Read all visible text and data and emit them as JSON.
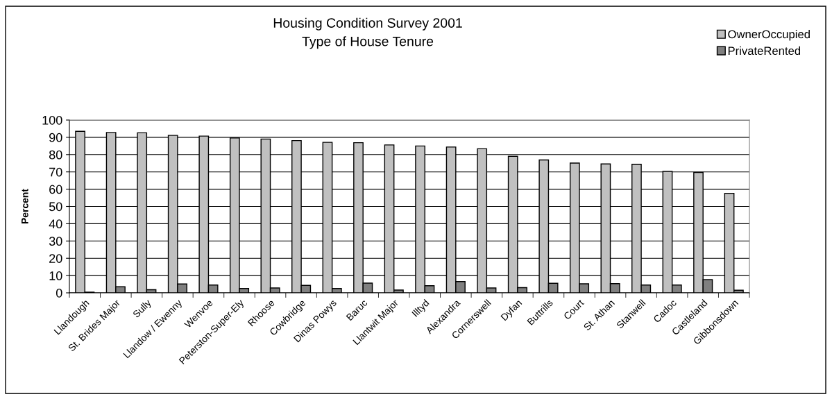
{
  "chart_data": {
    "type": "bar",
    "title": "Housing Condition Survey 2001\nType of House Tenure",
    "ylabel": "Percent",
    "categories": [
      "Llandough",
      "St. Brides Major",
      "Sully",
      "Llandow / Ewenny",
      "Wenvoe",
      "Peterston-Super-Ely",
      "Rhoose",
      "Cowbridge",
      "Dinas Powys",
      "Baruc",
      "Llantwit Major",
      "Illtyd",
      "Alexandra",
      "Cornerswell",
      "Dyfan",
      "Buttrills",
      "Court",
      "St. Athan",
      "Stanwell",
      "Cadoc",
      "Castleland",
      "Gibbonsdown"
    ],
    "series": [
      {
        "name": "OwnerOccupied",
        "color": "#c0c0c0",
        "values": [
          93.5,
          92.8,
          92.6,
          91.1,
          90.7,
          89.6,
          89.0,
          88.1,
          87.1,
          86.9,
          85.6,
          85.0,
          84.4,
          83.4,
          79.0,
          76.9,
          75.1,
          74.6,
          74.4,
          70.3,
          69.7,
          57.6
        ]
      },
      {
        "name": "PrivateRented",
        "color": "#808080",
        "values": [
          0.4,
          3.5,
          1.8,
          5.1,
          4.5,
          2.5,
          2.8,
          4.3,
          2.5,
          5.6,
          1.6,
          4.1,
          6.5,
          2.8,
          3.0,
          5.5,
          5.2,
          5.3,
          4.5,
          4.5,
          7.7,
          1.5
        ]
      }
    ],
    "ylim": [
      0,
      100
    ],
    "yticks": [
      0,
      10,
      20,
      30,
      40,
      50,
      60,
      70,
      80,
      90,
      100
    ],
    "grid": "y",
    "legend": "top right"
  }
}
